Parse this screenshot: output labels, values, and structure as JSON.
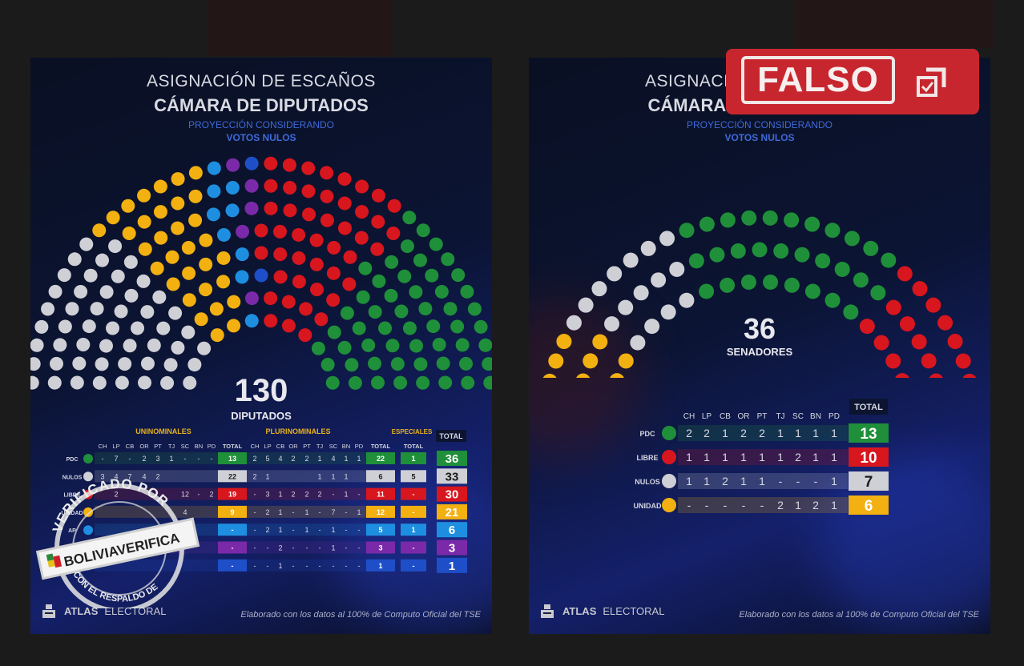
{
  "left_panel": {
    "title_line1": "ASIGNACIÓN DE ESCAÑOS",
    "title_line2": "CÁMARA DE DIPUTADOS",
    "subtitle_line1": "PROYECCIÓN CONSIDERANDO",
    "subtitle_line2": "VOTOS NULOS",
    "total_number": "130",
    "total_label": "DIPUTADOS",
    "footer_brand_bold": "ATLAS",
    "footer_brand_light": "ELECTORAL",
    "footer_credit": "Elaborado con los datos al 100% de Computo Oficial del TSE"
  },
  "right_panel": {
    "title_line1": "ASIGNACIÓN DE ESCAÑOS",
    "title_line2": "CÁMARA DE SENADORES",
    "subtitle_line1": "PROYECCIÓN CONSIDERANDO",
    "subtitle_line2": "VOTOS NULOS",
    "total_number": "36",
    "total_label": "SENADORES",
    "footer_brand_bold": "ATLAS",
    "footer_brand_light": "ELECTORAL",
    "footer_credit": "Elaborado con los datos al 100% de Computo Oficial del TSE"
  },
  "overlay": {
    "falso_label": "FALSO",
    "stamp_top": "VERIFICADO POR",
    "stamp_brand": "BOLIVIAVERIFICA",
    "stamp_bottom": "CON EL RESPALDO DE"
  },
  "colors": {
    "PDC": "#1f8f3a",
    "LIBRE": "#d8161e",
    "NULOS": "#cfcfd6",
    "UNIDAD": "#f2b011",
    "AP": "#1e8fe0",
    "APB": "#7a2aa8",
    "FP": "#1f4fc8"
  },
  "chart_data": [
    {
      "type": "table",
      "title": "ASIGNACIÓN DE ESCAÑOS — CÁMARA DE DIPUTADOS",
      "subtitle": "PROYECCIÓN CONSIDERANDO VOTOS NULOS",
      "seat_total": 130,
      "group_headers": [
        "UNINOMINALES",
        "PLURINOMINALES",
        "ESPECIALES",
        "TOTAL"
      ],
      "department_columns": [
        "CH",
        "LP",
        "CB",
        "OR",
        "PT",
        "TJ",
        "SC",
        "BN",
        "PD"
      ],
      "column_header_total": "TOTAL",
      "rows": [
        {
          "party": "PDC",
          "color_key": "PDC",
          "uninominales": [
            "-",
            "7",
            "-",
            "2",
            "3",
            "1",
            "-",
            "-",
            "-"
          ],
          "uni_total": "13",
          "plurinominales": [
            "2",
            "5",
            "4",
            "2",
            "2",
            "1",
            "4",
            "1",
            "1"
          ],
          "pluri_total": "22",
          "especiales": "1",
          "total": "36"
        },
        {
          "party": "NULOS",
          "color_key": "NULOS",
          "uninominales": [
            "3",
            "4",
            "7",
            "4",
            "2",
            "",
            "",
            "",
            ""
          ],
          "uni_total": "22",
          "plurinominales": [
            "2",
            "1",
            "",
            "",
            "",
            "1",
            "1",
            "1",
            ""
          ],
          "pluri_total": "6",
          "especiales": "5",
          "total": "33"
        },
        {
          "party": "LIBRE",
          "color_key": "LIBRE",
          "uninominales": [
            "",
            "2",
            "",
            "",
            "",
            "",
            "12",
            "-",
            "2"
          ],
          "uni_total": "19",
          "plurinominales": [
            "-",
            "3",
            "1",
            "2",
            "2",
            "2",
            "-",
            "1",
            "-"
          ],
          "pluri_total": "11",
          "especiales": "-",
          "total": "30"
        },
        {
          "party": "UNIDAD",
          "color_key": "UNIDAD",
          "uninominales": [
            "",
            "",
            "",
            "",
            "",
            "",
            "4",
            "",
            ""
          ],
          "uni_total": "9",
          "plurinominales": [
            "-",
            "2",
            "1",
            "-",
            "1",
            "-",
            "7",
            "-",
            "1"
          ],
          "pluri_total": "12",
          "especiales": "-",
          "total": "21"
        },
        {
          "party": "AP",
          "color_key": "AP",
          "uninominales": [
            "",
            "",
            "",
            "",
            "",
            "",
            "",
            "",
            ""
          ],
          "uni_total": "-",
          "plurinominales": [
            "-",
            "2",
            "1",
            "-",
            "1",
            "-",
            "1",
            "-",
            "-"
          ],
          "pluri_total": "5",
          "especiales": "1",
          "total": "6"
        },
        {
          "party": "",
          "color_key": "APB",
          "uninominales": [
            "",
            "",
            "",
            "",
            "",
            "",
            "",
            "",
            ""
          ],
          "uni_total": "-",
          "plurinominales": [
            "-",
            "-",
            "2",
            "-",
            "-",
            "-",
            "1",
            "-",
            "-"
          ],
          "pluri_total": "3",
          "especiales": "-",
          "total": "3"
        },
        {
          "party": "",
          "color_key": "FP",
          "uninominales": [
            "",
            "",
            "",
            "",
            "",
            "",
            "",
            "",
            ""
          ],
          "uni_total": "-",
          "plurinominales": [
            "-",
            "-",
            "1",
            "-",
            "-",
            "-",
            "-",
            "-",
            "-"
          ],
          "pluri_total": "1",
          "especiales": "-",
          "total": "1"
        }
      ]
    },
    {
      "type": "table",
      "title": "ASIGNACIÓN DE ESCAÑOS — CÁMARA DE SENADORES",
      "subtitle": "PROYECCIÓN CONSIDERANDO VOTOS NULOS",
      "seat_total": 36,
      "department_columns": [
        "CH",
        "LP",
        "CB",
        "OR",
        "PT",
        "TJ",
        "SC",
        "BN",
        "PD"
      ],
      "column_header_total": "TOTAL",
      "rows": [
        {
          "party": "PDC",
          "color_key": "PDC",
          "values": [
            "2",
            "2",
            "1",
            "2",
            "2",
            "1",
            "1",
            "1",
            "1"
          ],
          "total": "13"
        },
        {
          "party": "LIBRE",
          "color_key": "LIBRE",
          "values": [
            "1",
            "1",
            "1",
            "1",
            "1",
            "1",
            "2",
            "1",
            "1"
          ],
          "total": "10"
        },
        {
          "party": "NULOS",
          "color_key": "NULOS",
          "values": [
            "1",
            "1",
            "2",
            "1",
            "1",
            "-",
            "-",
            "-",
            "1"
          ],
          "total": "7"
        },
        {
          "party": "UNIDAD",
          "color_key": "UNIDAD",
          "values": [
            "-",
            "-",
            "-",
            "-",
            "-",
            "2",
            "1",
            "2",
            "1"
          ],
          "total": "6"
        }
      ]
    }
  ]
}
